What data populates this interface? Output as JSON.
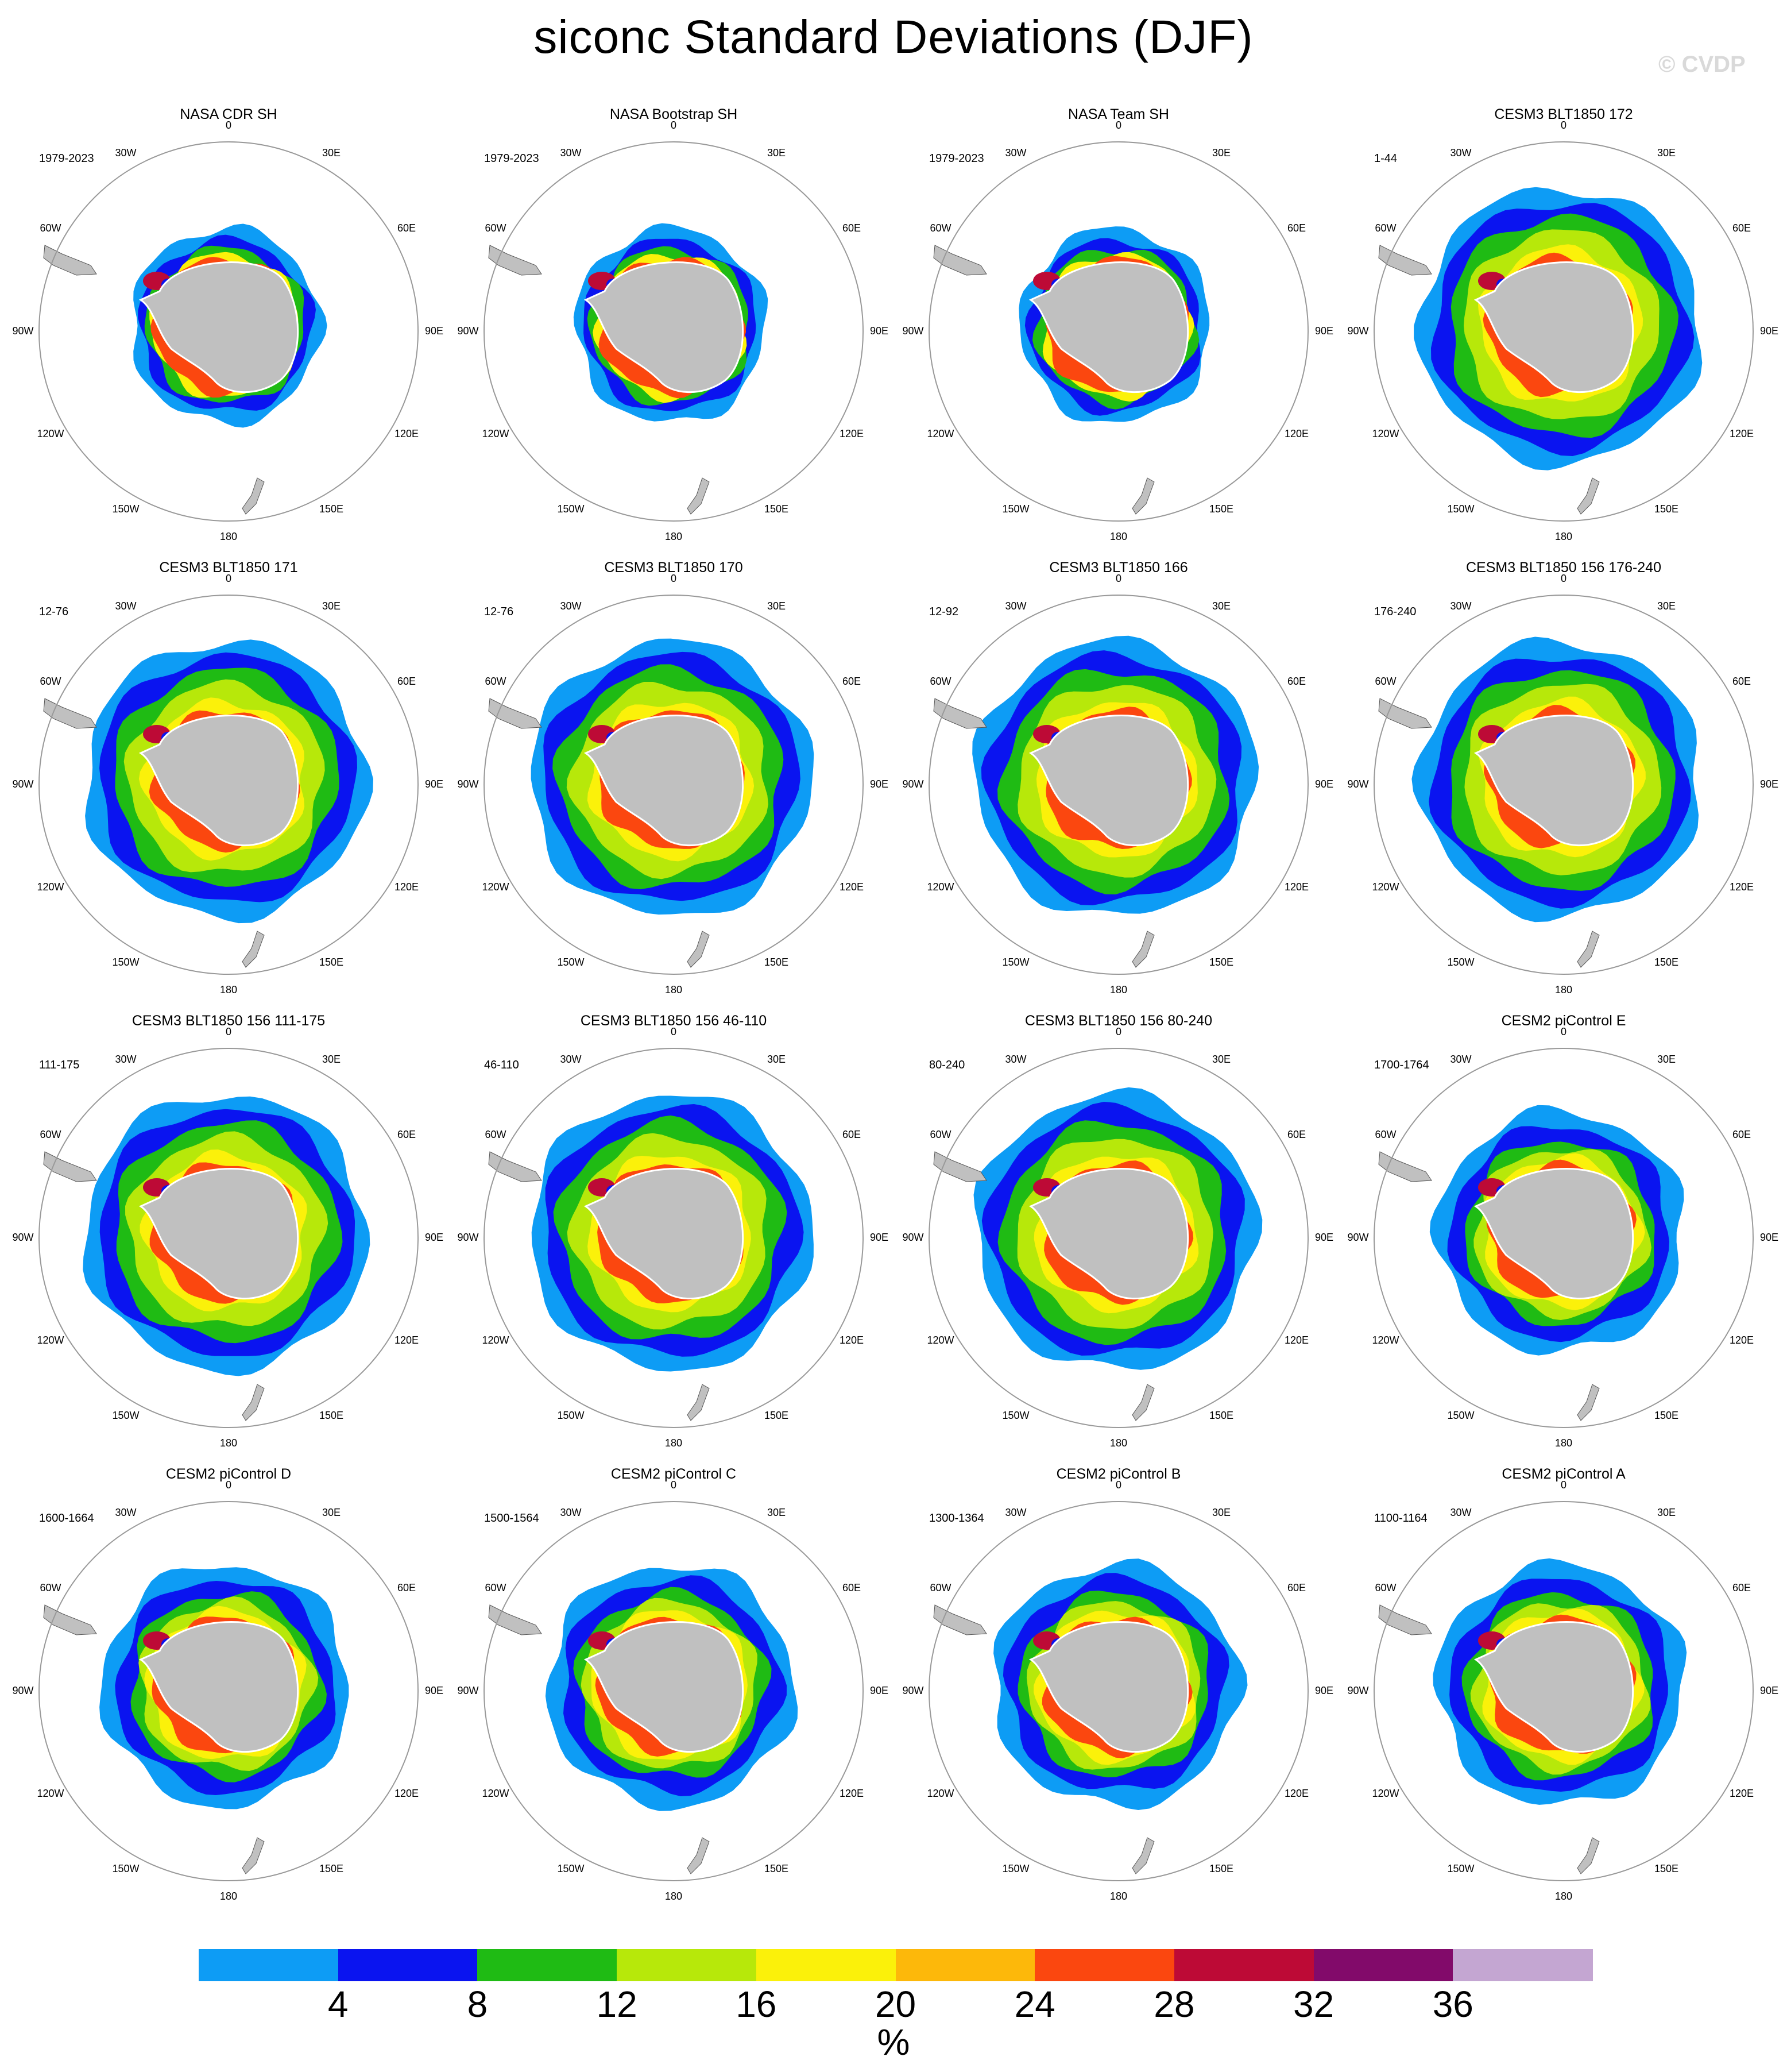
{
  "title": "siconc Standard Deviations (DJF)",
  "watermark": "© CVDP",
  "longitude_labels": [
    "0",
    "30E",
    "60E",
    "90E",
    "120E",
    "150E",
    "180",
    "150W",
    "120W",
    "90W",
    "60W",
    "30W"
  ],
  "panels": [
    {
      "title": "NASA CDR SH",
      "years": "1979-2023",
      "style": "obs"
    },
    {
      "title": "NASA Bootstrap SH",
      "years": "1979-2023",
      "style": "obs"
    },
    {
      "title": "NASA Team SH",
      "years": "1979-2023",
      "style": "obs"
    },
    {
      "title": "CESM3 BLT1850 172",
      "years": "1-44",
      "style": "model"
    },
    {
      "title": "CESM3 BLT1850 171",
      "years": "12-76",
      "style": "model"
    },
    {
      "title": "CESM3 BLT1850 170",
      "years": "12-76",
      "style": "model"
    },
    {
      "title": "CESM3 BLT1850 166",
      "years": "12-92",
      "style": "model"
    },
    {
      "title": "CESM3 BLT1850 156 176-240",
      "years": "176-240",
      "style": "model"
    },
    {
      "title": "CESM3 BLT1850 156 111-175",
      "years": "111-175",
      "style": "model"
    },
    {
      "title": "CESM3 BLT1850 156 46-110",
      "years": "46-110",
      "style": "model"
    },
    {
      "title": "CESM3 BLT1850 156 80-240",
      "years": "80-240",
      "style": "model"
    },
    {
      "title": "CESM2 piControl E",
      "years": "1700-1764",
      "style": "cesm2"
    },
    {
      "title": "CESM2 piControl D",
      "years": "1600-1664",
      "style": "cesm2"
    },
    {
      "title": "CESM2 piControl C",
      "years": "1500-1564",
      "style": "cesm2"
    },
    {
      "title": "CESM2 piControl B",
      "years": "1300-1364",
      "style": "cesm2"
    },
    {
      "title": "CESM2 piControl A",
      "years": "1100-1164",
      "style": "cesm2"
    }
  ],
  "colorbar": {
    "unit": "%",
    "labels": [
      "4",
      "8",
      "12",
      "16",
      "20",
      "24",
      "28",
      "32",
      "36"
    ],
    "colors": [
      "#0d9cf5",
      "#0a14f0",
      "#1fbb14",
      "#b7e80a",
      "#fbf10a",
      "#fdb80a",
      "#fb470f",
      "#bd0a36",
      "#820a6a",
      "#c4a6d2"
    ]
  }
}
